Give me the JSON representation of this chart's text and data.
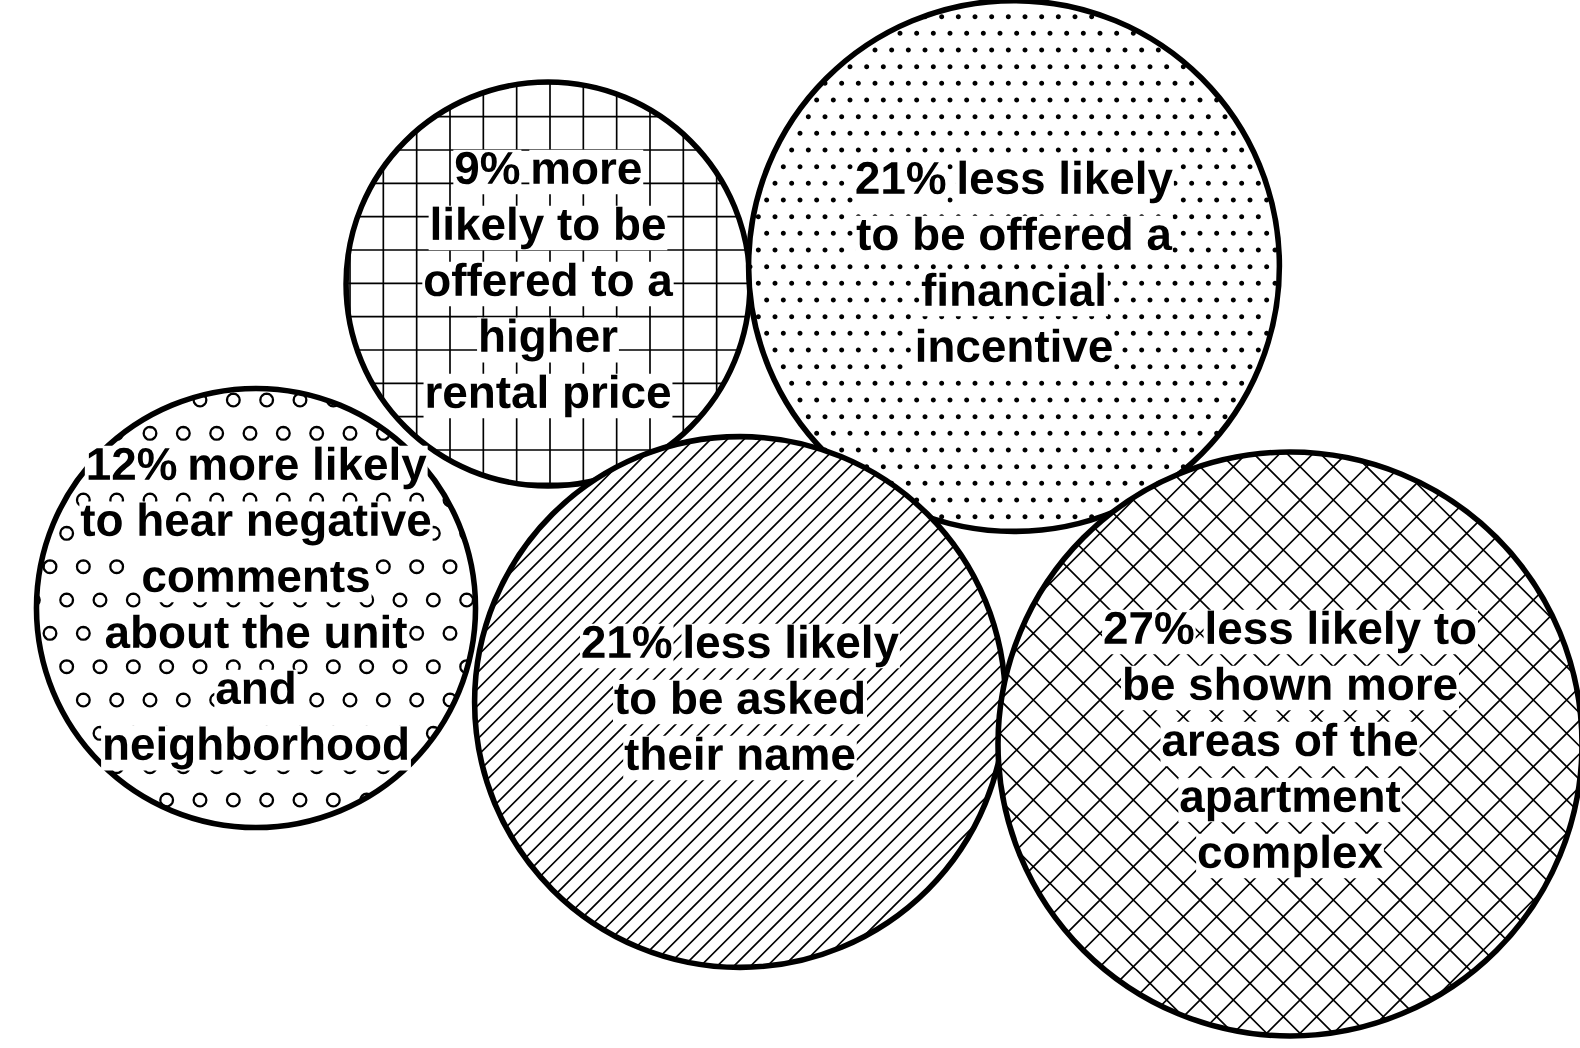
{
  "chart_data": {
    "type": "other",
    "categories": [
      "more\nlikely to be\noffered to a\nhigher\nrental price",
      "less likely\nto be offered a\nfinancial\nincentive",
      "more likely\nto hear negative\ncomments\nabout the unit\nand\nneighborhood",
      "less likely\nto be asked\ntheir name",
      "less likely to\nbe shown more\nareas of the\napartment\ncomplex"
    ],
    "values": [
      9,
      21,
      12,
      21,
      27
    ],
    "value_labels": [
      "9%",
      "21%",
      "12%",
      "21%",
      "27%"
    ]
  }
}
